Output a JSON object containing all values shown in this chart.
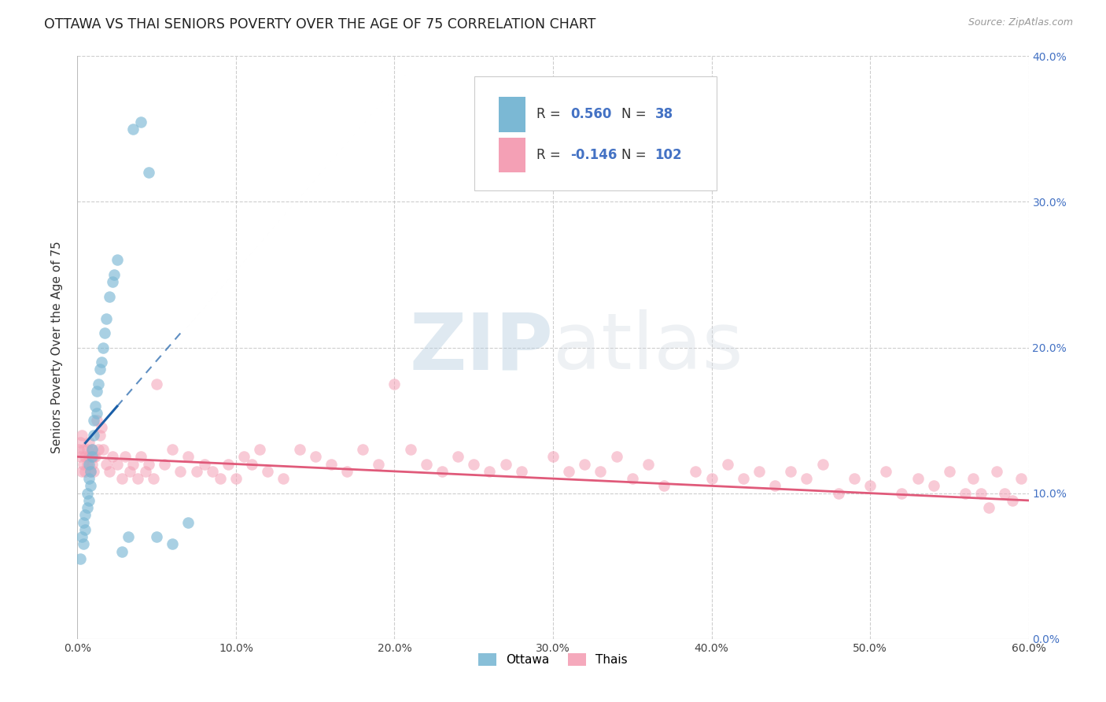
{
  "title": "OTTAWA VS THAI SENIORS POVERTY OVER THE AGE OF 75 CORRELATION CHART",
  "source": "Source: ZipAtlas.com",
  "ylabel": "Seniors Poverty Over the Age of 75",
  "xlim": [
    0.0,
    0.6
  ],
  "ylim": [
    0.0,
    0.4
  ],
  "ottawa_R": 0.56,
  "ottawa_N": 38,
  "thai_R": -0.146,
  "thai_N": 102,
  "ottawa_color": "#7bb8d4",
  "thai_color": "#f4a0b5",
  "ottawa_trend_color": "#1a5fa8",
  "thai_trend_color": "#e05a7a",
  "background_color": "#ffffff",
  "grid_color": "#c8c8c8",
  "watermark_zip": "ZIP",
  "watermark_atlas": "atlas",
  "title_fontsize": 12.5,
  "ottawa_x": [
    0.002,
    0.003,
    0.004,
    0.004,
    0.005,
    0.005,
    0.006,
    0.006,
    0.007,
    0.007,
    0.007,
    0.008,
    0.008,
    0.009,
    0.009,
    0.01,
    0.01,
    0.011,
    0.012,
    0.012,
    0.013,
    0.014,
    0.015,
    0.016,
    0.017,
    0.018,
    0.02,
    0.022,
    0.023,
    0.025,
    0.028,
    0.032,
    0.035,
    0.04,
    0.045,
    0.05,
    0.06,
    0.07
  ],
  "ottawa_y": [
    0.055,
    0.07,
    0.065,
    0.08,
    0.075,
    0.085,
    0.09,
    0.1,
    0.095,
    0.11,
    0.12,
    0.105,
    0.115,
    0.125,
    0.13,
    0.14,
    0.15,
    0.16,
    0.155,
    0.17,
    0.175,
    0.185,
    0.19,
    0.2,
    0.21,
    0.22,
    0.235,
    0.245,
    0.25,
    0.26,
    0.06,
    0.07,
    0.35,
    0.355,
    0.32,
    0.07,
    0.065,
    0.08
  ],
  "thai_x": [
    0.001,
    0.002,
    0.002,
    0.003,
    0.003,
    0.004,
    0.004,
    0.005,
    0.005,
    0.006,
    0.006,
    0.007,
    0.007,
    0.008,
    0.008,
    0.009,
    0.009,
    0.01,
    0.01,
    0.011,
    0.012,
    0.013,
    0.014,
    0.015,
    0.016,
    0.018,
    0.02,
    0.022,
    0.025,
    0.028,
    0.03,
    0.033,
    0.035,
    0.038,
    0.04,
    0.043,
    0.045,
    0.048,
    0.05,
    0.055,
    0.06,
    0.065,
    0.07,
    0.075,
    0.08,
    0.085,
    0.09,
    0.095,
    0.1,
    0.105,
    0.11,
    0.115,
    0.12,
    0.13,
    0.14,
    0.15,
    0.16,
    0.17,
    0.18,
    0.19,
    0.2,
    0.21,
    0.22,
    0.23,
    0.24,
    0.25,
    0.26,
    0.27,
    0.28,
    0.3,
    0.31,
    0.32,
    0.33,
    0.34,
    0.35,
    0.36,
    0.37,
    0.39,
    0.4,
    0.41,
    0.42,
    0.43,
    0.44,
    0.45,
    0.46,
    0.47,
    0.48,
    0.49,
    0.5,
    0.51,
    0.52,
    0.53,
    0.54,
    0.55,
    0.56,
    0.565,
    0.57,
    0.575,
    0.58,
    0.585,
    0.59,
    0.595
  ],
  "thai_y": [
    0.13,
    0.125,
    0.135,
    0.115,
    0.14,
    0.12,
    0.13,
    0.125,
    0.115,
    0.13,
    0.12,
    0.125,
    0.135,
    0.115,
    0.125,
    0.12,
    0.13,
    0.125,
    0.115,
    0.125,
    0.15,
    0.13,
    0.14,
    0.145,
    0.13,
    0.12,
    0.115,
    0.125,
    0.12,
    0.11,
    0.125,
    0.115,
    0.12,
    0.11,
    0.125,
    0.115,
    0.12,
    0.11,
    0.175,
    0.12,
    0.13,
    0.115,
    0.125,
    0.115,
    0.12,
    0.115,
    0.11,
    0.12,
    0.11,
    0.125,
    0.12,
    0.13,
    0.115,
    0.11,
    0.13,
    0.125,
    0.12,
    0.115,
    0.13,
    0.12,
    0.175,
    0.13,
    0.12,
    0.115,
    0.125,
    0.12,
    0.115,
    0.12,
    0.115,
    0.125,
    0.115,
    0.12,
    0.115,
    0.125,
    0.11,
    0.12,
    0.105,
    0.115,
    0.11,
    0.12,
    0.11,
    0.115,
    0.105,
    0.115,
    0.11,
    0.12,
    0.1,
    0.11,
    0.105,
    0.115,
    0.1,
    0.11,
    0.105,
    0.115,
    0.1,
    0.11,
    0.1,
    0.09,
    0.115,
    0.1,
    0.095,
    0.11
  ]
}
